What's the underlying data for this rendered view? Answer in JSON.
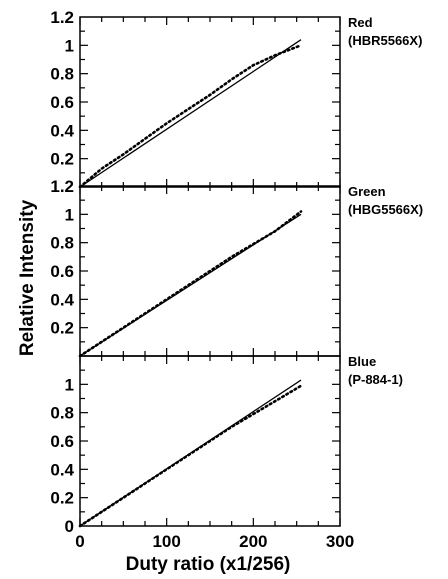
{
  "chart_data": {
    "type": "line",
    "xlabel": "Duty ratio (x1/256)",
    "ylabel": "Relative Intensity",
    "xlim": [
      0,
      300
    ],
    "ylim": [
      0,
      1.2
    ],
    "xticks": [
      0,
      100,
      200,
      300
    ],
    "xtick_labels": [
      "0",
      "100",
      "200",
      "300"
    ],
    "yticks": [
      0.2,
      0.4,
      0.6,
      0.8,
      1,
      1.2
    ],
    "ytick_labels_bottom": [
      "0",
      "0.2",
      "0.4",
      "0.6",
      "0.8",
      "1"
    ],
    "ytick_labels": [
      "0.2",
      "0.4",
      "0.6",
      "0.8",
      "1",
      "1.2"
    ],
    "grid": false,
    "panels": [
      {
        "label_line1": "Red",
        "label_line2": "(HBR5566X)",
        "series": [
          {
            "style": "solid",
            "x": [
              0,
              255
            ],
            "y": [
              0,
              1.04
            ]
          },
          {
            "style": "dotted",
            "x": [
              0,
              25,
              50,
              75,
              100,
              125,
              150,
              175,
              200,
              225,
              255
            ],
            "y": [
              0,
              0.13,
              0.23,
              0.34,
              0.45,
              0.55,
              0.65,
              0.76,
              0.86,
              0.93,
              1.0
            ]
          }
        ]
      },
      {
        "label_line1": "Green",
        "label_line2": "(HBG5566X)",
        "series": [
          {
            "style": "solid",
            "x": [
              0,
              255
            ],
            "y": [
              0,
              1.0
            ]
          },
          {
            "style": "dotted",
            "x": [
              0,
              25,
              50,
              75,
              100,
              125,
              150,
              175,
              200,
              225,
              255
            ],
            "y": [
              0,
              0.1,
              0.2,
              0.3,
              0.4,
              0.5,
              0.6,
              0.7,
              0.79,
              0.88,
              1.02
            ]
          }
        ]
      },
      {
        "label_line1": "Blue",
        "label_line2": "(P-884-1)",
        "series": [
          {
            "style": "solid",
            "x": [
              0,
              255
            ],
            "y": [
              0,
              1.03
            ]
          },
          {
            "style": "dotted",
            "x": [
              0,
              25,
              50,
              75,
              100,
              125,
              150,
              175,
              200,
              225,
              255
            ],
            "y": [
              0,
              0.1,
              0.2,
              0.3,
              0.4,
              0.5,
              0.6,
              0.7,
              0.79,
              0.88,
              0.99
            ]
          }
        ]
      }
    ]
  }
}
